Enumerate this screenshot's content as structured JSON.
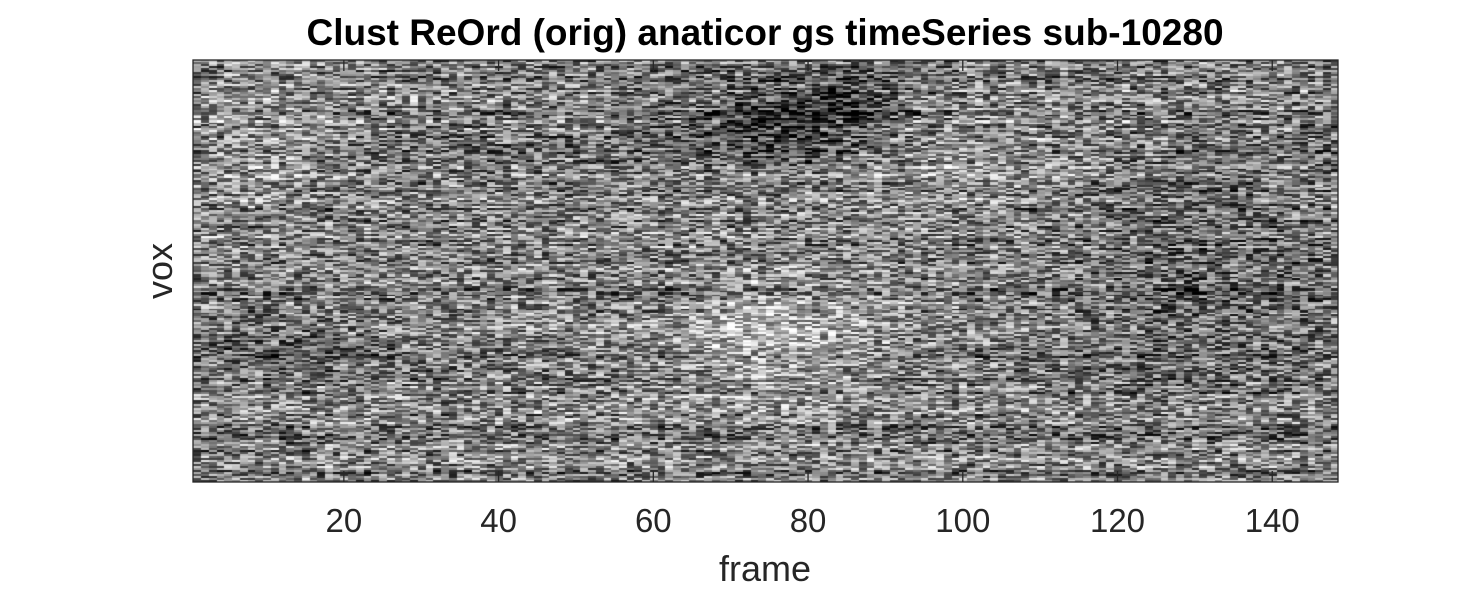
{
  "chart_data": {
    "type": "heatmap",
    "title": "Clust ReOrd (orig) anaticor gs timeSeries sub-10280",
    "xlabel": "frame",
    "ylabel": "vox",
    "xlim": [
      1,
      148
    ],
    "xticks": [
      20,
      40,
      60,
      80,
      100,
      120,
      140
    ],
    "yticks": [],
    "colormap": "gray",
    "grid": false,
    "legend": "none",
    "n_frames": 148,
    "values_description": "voxel time-series intensity, noisy grayscale with darker bands around frames 65-90 near top rows and lighter region around frames 65-90 mid-lower rows"
  }
}
